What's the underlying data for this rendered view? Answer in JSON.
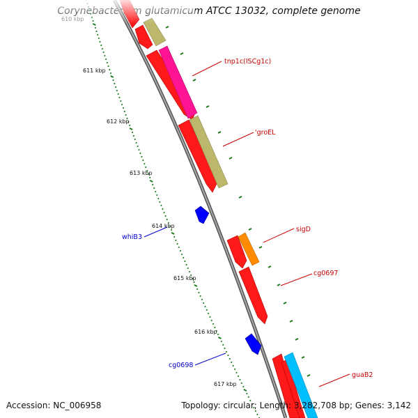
{
  "title": "Corynebacterium glutamicum ATCC 13032, complete genome",
  "footer": {
    "accession": "Accession: NC_006958",
    "topology": "Topology: circular; Length: 3,282,708 bp; Genes: 3,142"
  },
  "colors": {
    "backbone": "#8a8a8a",
    "tick": "#1a7a1a",
    "gene_red": "#ff1a1a",
    "label_red": "#cc0000",
    "label_blue": "#0000cc"
  },
  "ticks": [
    "610 kbp",
    "611 kbp",
    "612 kbp",
    "613 kbp",
    "614 kbp",
    "615 kbp",
    "616 kbp",
    "617 kbp"
  ],
  "features": [
    {
      "name": "tnp1c(ISCg1c)",
      "color": "#ff1493",
      "strand": "outer"
    },
    {
      "name": "'groEL",
      "color": "#bdb76b",
      "strand": "outer"
    },
    {
      "name": "whiB3",
      "color": "#0000ff",
      "strand": "inner"
    },
    {
      "name": "sigD",
      "color": "#ff8c00",
      "strand": "outer"
    },
    {
      "name": "cg0697",
      "color": "#ff1a1a",
      "strand": "outer"
    },
    {
      "name": "cg0698",
      "color": "#0000ff",
      "strand": "inner"
    },
    {
      "name": "guaB2",
      "color": "#00bfff",
      "strand": "outer"
    }
  ]
}
